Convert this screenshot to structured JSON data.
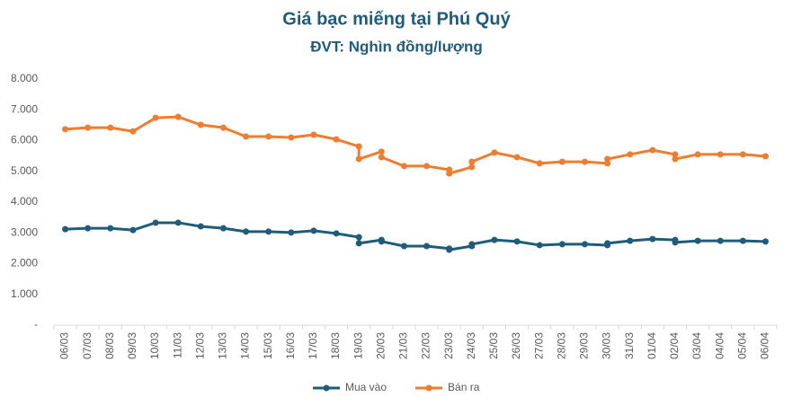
{
  "chart_data": {
    "type": "line",
    "title": "Giá bạc miếng tại Phú Quý",
    "subtitle": "ĐVT: Nghìn đồng/lượng",
    "categories": [
      "06/03",
      "07/03",
      "08/03",
      "09/03",
      "10/03",
      "11/03",
      "12/03",
      "13/03",
      "14/03",
      "15/03",
      "16/03",
      "17/03",
      "18/03",
      "19/03",
      "20/03",
      "21/03",
      "22/03",
      "23/03",
      "24/03",
      "25/03",
      "26/03",
      "27/03",
      "28/03",
      "29/03",
      "30/03",
      "31/03",
      "01/04",
      "02/04",
      "03/04",
      "04/04",
      "05/04",
      "06/04"
    ],
    "x": [
      "06/03",
      "07/03",
      "08/03",
      "09/03",
      "10/03",
      "11/03",
      "12/03",
      "13/03",
      "14/03",
      "15/03",
      "16/03",
      "17/03",
      "18/03",
      "19/03",
      "19/03",
      "20/03",
      "20/03",
      "21/03",
      "22/03",
      "23/03",
      "23/03",
      "24/03",
      "24/03",
      "25/03",
      "26/03",
      "27/03",
      "28/03",
      "29/03",
      "30/03",
      "30/03",
      "31/03",
      "01/04",
      "02/04",
      "02/04",
      "03/04",
      "04/04",
      "05/04",
      "06/04"
    ],
    "series": [
      {
        "name": "Mua vào",
        "color": "#1f5c7a",
        "values": [
          3120,
          3150,
          3150,
          3090,
          3330,
          3330,
          3210,
          3150,
          3040,
          3040,
          3010,
          3070,
          2980,
          2860,
          2660,
          2770,
          2720,
          2570,
          2570,
          2490,
          2450,
          2570,
          2630,
          2770,
          2720,
          2600,
          2630,
          2630,
          2600,
          2660,
          2740,
          2800,
          2770,
          2690,
          2740,
          2740,
          2740,
          2720
        ]
      },
      {
        "name": "Bán ra",
        "color": "#ed7d31",
        "values": [
          6370,
          6420,
          6420,
          6300,
          6740,
          6770,
          6510,
          6420,
          6130,
          6130,
          6100,
          6190,
          6040,
          5810,
          5400,
          5640,
          5460,
          5170,
          5170,
          5050,
          4930,
          5140,
          5310,
          5610,
          5460,
          5260,
          5310,
          5310,
          5260,
          5400,
          5550,
          5690,
          5550,
          5400,
          5550,
          5550,
          5550,
          5490
        ]
      }
    ],
    "ylim": [
      0,
      8000
    ],
    "yticks": [
      {
        "value": 0,
        "label": "-"
      },
      {
        "value": 1000,
        "label": "1.000"
      },
      {
        "value": 2000,
        "label": "2.000"
      },
      {
        "value": 3000,
        "label": "3.000"
      },
      {
        "value": 4000,
        "label": "4.000"
      },
      {
        "value": 5000,
        "label": "5.000"
      },
      {
        "value": 6000,
        "label": "6.000"
      },
      {
        "value": 7000,
        "label": "7.000"
      },
      {
        "value": 8000,
        "label": "8.000"
      }
    ],
    "legend": "bottom"
  }
}
